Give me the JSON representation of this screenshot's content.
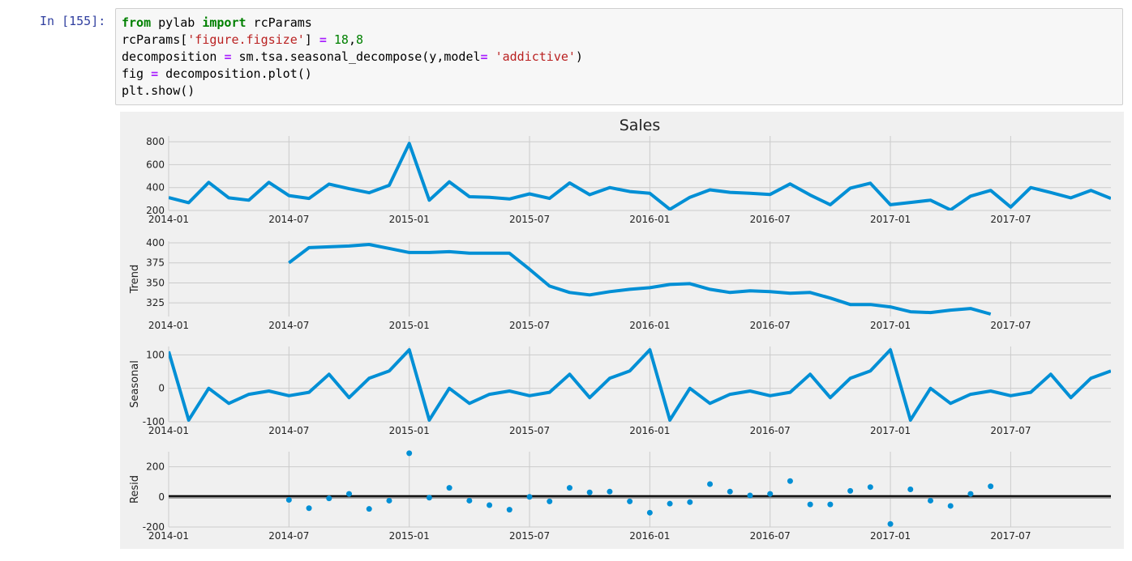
{
  "cell": {
    "prompt": "In [155]:",
    "code_lines": [
      [
        {
          "t": "from",
          "c": "kw"
        },
        {
          "t": " pylab "
        },
        {
          "t": "import",
          "c": "kw"
        },
        {
          "t": " rcParams"
        }
      ],
      [
        {
          "t": "rcParams["
        },
        {
          "t": "'figure.figsize'",
          "c": "str"
        },
        {
          "t": "] "
        },
        {
          "t": "=",
          "c": "op"
        },
        {
          "t": " "
        },
        {
          "t": "18",
          "c": "num"
        },
        {
          "t": ","
        },
        {
          "t": "8",
          "c": "num"
        }
      ],
      [
        {
          "t": "decomposition "
        },
        {
          "t": "=",
          "c": "op"
        },
        {
          "t": " sm.tsa.seasonal_decompose(y,model"
        },
        {
          "t": "=",
          "c": "op"
        },
        {
          "t": " "
        },
        {
          "t": "'addictive'",
          "c": "str"
        },
        {
          "t": ")"
        }
      ],
      [
        {
          "t": "fig "
        },
        {
          "t": "=",
          "c": "op"
        },
        {
          "t": " decomposition.plot()"
        }
      ],
      [
        {
          "t": "plt.show()"
        }
      ]
    ]
  },
  "colors": {
    "line": "#008fd5",
    "grid": "#cbcbcb",
    "panel_bg": "#f0f0f0",
    "zero_line": "#000000"
  },
  "chart_data": [
    {
      "type": "line",
      "title": "Sales",
      "ylabel": "",
      "x_ticks": [
        "2014-01",
        "2014-07",
        "2015-01",
        "2015-07",
        "2016-01",
        "2016-07",
        "2017-01",
        "2017-07"
      ],
      "y_ticks": [
        200,
        400,
        600,
        800
      ],
      "ylim": [
        200,
        850
      ],
      "x": [
        "2014-01",
        "2014-02",
        "2014-03",
        "2014-04",
        "2014-05",
        "2014-06",
        "2014-07",
        "2014-08",
        "2014-09",
        "2014-10",
        "2014-11",
        "2014-12",
        "2015-01",
        "2015-02",
        "2015-03",
        "2015-04",
        "2015-05",
        "2015-06",
        "2015-07",
        "2015-08",
        "2015-09",
        "2015-10",
        "2015-11",
        "2015-12",
        "2016-01",
        "2016-02",
        "2016-03",
        "2016-04",
        "2016-05",
        "2016-06",
        "2016-07",
        "2016-08",
        "2016-09",
        "2016-10",
        "2016-11",
        "2016-12",
        "2017-01",
        "2017-02",
        "2017-03",
        "2017-04",
        "2017-05",
        "2017-06",
        "2017-07",
        "2017-08",
        "2017-09",
        "2017-10",
        "2017-11",
        "2017-12"
      ],
      "values": [
        312,
        268,
        445,
        310,
        290,
        445,
        330,
        305,
        430,
        390,
        355,
        420,
        785,
        290,
        450,
        320,
        315,
        300,
        345,
        305,
        440,
        338,
        400,
        365,
        350,
        210,
        315,
        380,
        358,
        350,
        340,
        432,
        335,
        250,
        395,
        438,
        250,
        270,
        290,
        205,
        325,
        375,
        230,
        400,
        357,
        310,
        375,
        305
      ]
    },
    {
      "type": "line",
      "title": "",
      "ylabel": "Trend",
      "x_ticks": [
        "2014-01",
        "2014-07",
        "2015-01",
        "2015-07",
        "2016-01",
        "2016-07",
        "2017-01",
        "2017-07"
      ],
      "y_ticks": [
        325,
        350,
        375,
        400
      ],
      "ylim": [
        308,
        402
      ],
      "x": [
        "2014-07",
        "2014-08",
        "2014-09",
        "2014-10",
        "2014-11",
        "2014-12",
        "2015-01",
        "2015-02",
        "2015-03",
        "2015-04",
        "2015-05",
        "2015-06",
        "2015-07",
        "2015-08",
        "2015-09",
        "2015-10",
        "2015-11",
        "2015-12",
        "2016-01",
        "2016-02",
        "2016-03",
        "2016-04",
        "2016-05",
        "2016-06",
        "2016-07",
        "2016-08",
        "2016-09",
        "2016-10",
        "2016-11",
        "2016-12",
        "2017-01",
        "2017-02",
        "2017-03",
        "2017-04",
        "2017-05",
        "2017-06"
      ],
      "values": [
        375,
        394,
        395,
        396,
        398,
        393,
        388,
        388,
        389,
        387,
        387,
        387,
        367,
        346,
        338,
        335,
        339,
        342,
        344,
        348,
        349,
        342,
        338,
        340,
        339,
        337,
        338,
        331,
        323,
        323,
        320,
        314,
        313,
        316,
        318,
        311
      ]
    },
    {
      "type": "line",
      "title": "",
      "ylabel": "Seasonal",
      "x_ticks": [
        "2014-01",
        "2014-07",
        "2015-01",
        "2015-07",
        "2016-01",
        "2016-07",
        "2017-01",
        "2017-07"
      ],
      "y_ticks": [
        -100,
        0,
        100
      ],
      "ylim": [
        -100,
        125
      ],
      "x": [
        "2014-01",
        "2014-02",
        "2014-03",
        "2014-04",
        "2014-05",
        "2014-06",
        "2014-07",
        "2014-08",
        "2014-09",
        "2014-10",
        "2014-11",
        "2014-12",
        "2015-01",
        "2015-02",
        "2015-03",
        "2015-04",
        "2015-05",
        "2015-06",
        "2015-07",
        "2015-08",
        "2015-09",
        "2015-10",
        "2015-11",
        "2015-12",
        "2016-01",
        "2016-02",
        "2016-03",
        "2016-04",
        "2016-05",
        "2016-06",
        "2016-07",
        "2016-08",
        "2016-09",
        "2016-10",
        "2016-11",
        "2016-12",
        "2017-01",
        "2017-02",
        "2017-03",
        "2017-04",
        "2017-05",
        "2017-06",
        "2017-07",
        "2017-08",
        "2017-09",
        "2017-10",
        "2017-11",
        "2017-12"
      ],
      "values": [
        110,
        -95,
        0,
        -45,
        -18,
        -8,
        -22,
        -12,
        42,
        -28,
        30,
        52,
        115,
        -95,
        0,
        -45,
        -18,
        -8,
        -22,
        -12,
        42,
        -28,
        30,
        52,
        115,
        -95,
        0,
        -45,
        -18,
        -8,
        -22,
        -12,
        42,
        -28,
        30,
        52,
        115,
        -95,
        0,
        -45,
        -18,
        -8,
        -22,
        -12,
        42,
        -28,
        30,
        52
      ]
    },
    {
      "type": "scatter",
      "title": "",
      "ylabel": "Resid",
      "x_ticks": [
        "2014-01",
        "2014-07",
        "2015-01",
        "2015-07",
        "2016-01",
        "2016-07",
        "2017-01",
        "2017-07"
      ],
      "y_ticks": [
        -200,
        0,
        200
      ],
      "ylim": [
        -200,
        300
      ],
      "x": [
        "2014-07",
        "2014-08",
        "2014-09",
        "2014-10",
        "2014-11",
        "2014-12",
        "2015-01",
        "2015-02",
        "2015-03",
        "2015-04",
        "2015-05",
        "2015-06",
        "2015-07",
        "2015-08",
        "2015-09",
        "2015-10",
        "2015-11",
        "2015-12",
        "2016-01",
        "2016-02",
        "2016-03",
        "2016-04",
        "2016-05",
        "2016-06",
        "2016-07",
        "2016-08",
        "2016-09",
        "2016-10",
        "2016-11",
        "2016-12",
        "2017-01",
        "2017-02",
        "2017-03",
        "2017-04",
        "2017-05",
        "2017-06"
      ],
      "values": [
        -20,
        -75,
        -10,
        20,
        -80,
        -25,
        290,
        -5,
        60,
        -25,
        -55,
        -85,
        0,
        -30,
        60,
        30,
        35,
        -30,
        -105,
        -45,
        -35,
        85,
        35,
        10,
        20,
        105,
        -50,
        -50,
        40,
        65,
        -180,
        50,
        -25,
        -60,
        20,
        70
      ]
    }
  ]
}
